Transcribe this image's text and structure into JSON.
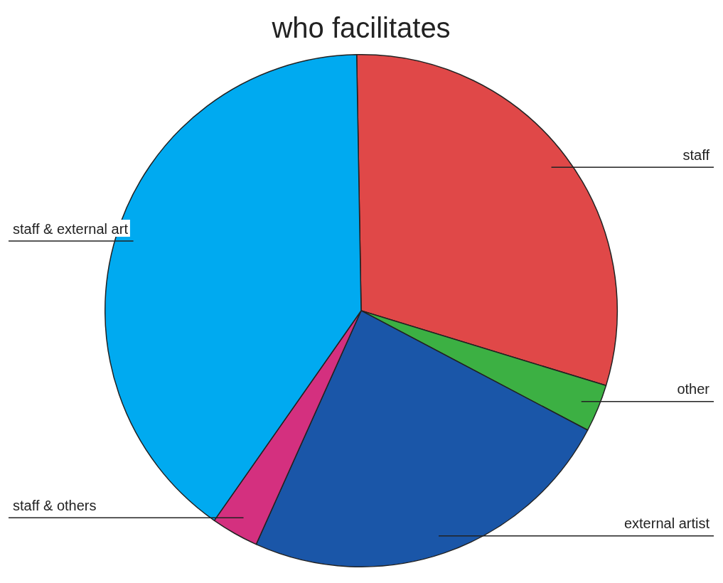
{
  "chart_data": {
    "type": "pie",
    "title": "who facilitates",
    "categories": [
      "staff",
      "other",
      "external artist",
      "staff & others",
      "staff & external art"
    ],
    "values": [
      30,
      3,
      24,
      3,
      40
    ],
    "colors": [
      "#e04848",
      "#3cb043",
      "#1a56a8",
      "#d4307f",
      "#00aaf0"
    ],
    "legend": false
  }
}
